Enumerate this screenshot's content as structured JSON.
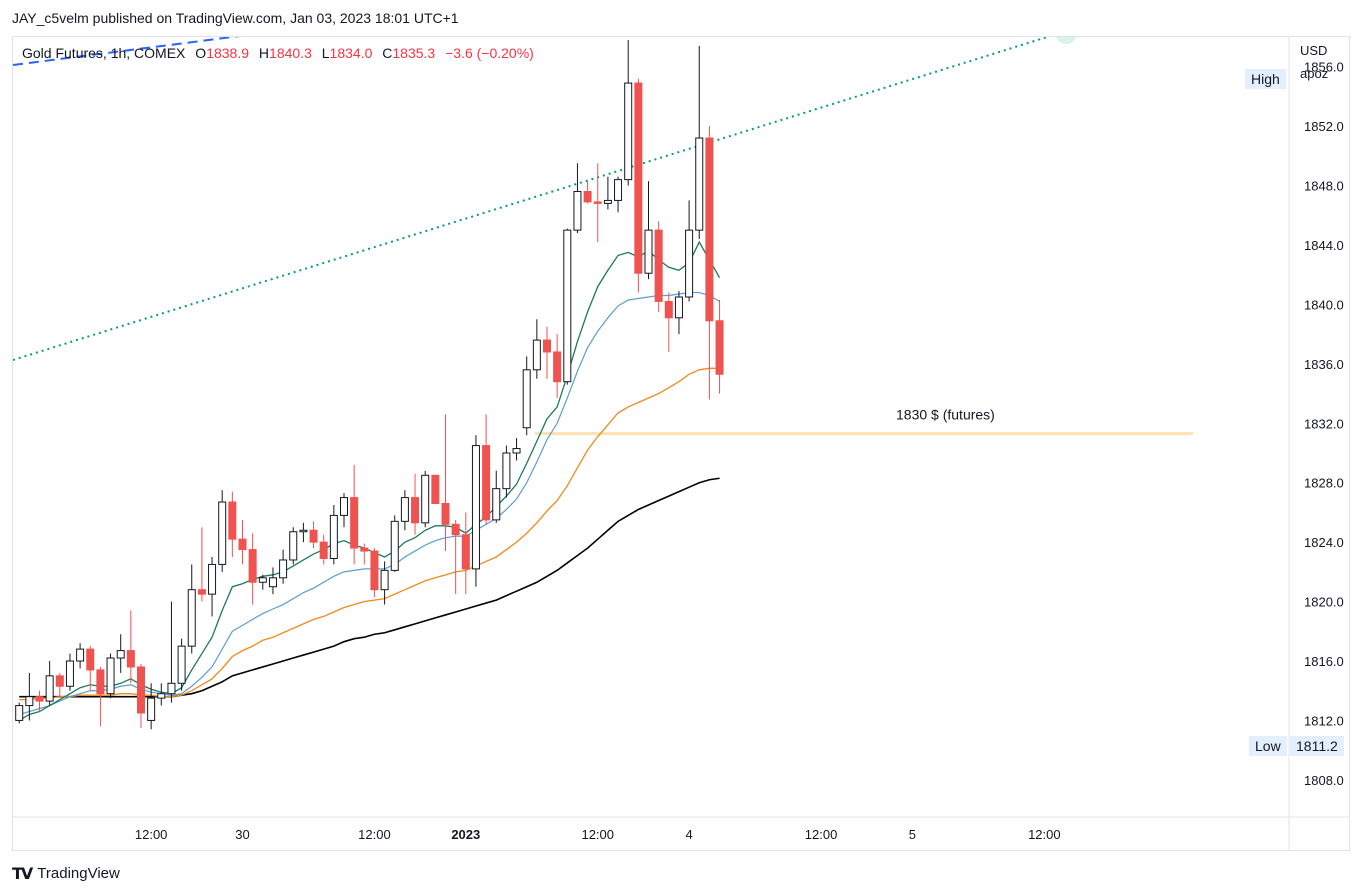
{
  "header": {
    "publish_text": "JAY_c5velm published on TradingView.com, Jan 03, 2023 18:01 UTC+1"
  },
  "legend": {
    "symbol": "Gold Futures, 1h, COMEX",
    "open_label": "O",
    "open": "1838.9",
    "high_label": "H",
    "high": "1840.3",
    "low_label": "L",
    "low": "1834.0",
    "close_label": "C",
    "close": "1835.3",
    "change": "−3.6 (−0.20%)"
  },
  "price_axis": {
    "currency": "USD",
    "user": "apoz",
    "high_tag": "High",
    "low_tag": "Low",
    "low_value": "1811.2"
  },
  "annotation": {
    "level_text": "1830 $ (futures)",
    "level_value": 1831.3
  },
  "brand": {
    "name": "TradingView"
  },
  "colors": {
    "up_body": "#ffffff",
    "up_border": "#131722",
    "down_body": "#ef5350",
    "down_border": "#ef5350",
    "ma_fast": "#1b7a5a",
    "ma_mid": "#5b9bd5",
    "ma_slow": "#ef8a1e",
    "ma_long": "#000000",
    "trendline": "#089981",
    "dashed_line": "#2962ff",
    "level_line": "#ffe0b2"
  },
  "chart_data": {
    "type": "candlestick",
    "title": "Gold Futures, 1h, COMEX",
    "y_ticks": [
      1808,
      1812,
      1816,
      1820,
      1824,
      1828,
      1832,
      1836,
      1840,
      1844,
      1848,
      1852,
      1856
    ],
    "y_tick_labels": [
      "1808.0",
      "1812.0",
      "1816.0",
      "1820.0",
      "1824.0",
      "1828.0",
      "1832.0",
      "1836.0",
      "1840.0",
      "1844.0",
      "1848.0",
      "1852.0",
      "1856.0"
    ],
    "ylim": [
      1805.5,
      1858
    ],
    "x_tick_labels": [
      {
        "i": 13,
        "label": "12:00",
        "bold": false
      },
      {
        "i": 22,
        "label": "30",
        "bold": false
      },
      {
        "i": 35,
        "label": "12:00",
        "bold": false
      },
      {
        "i": 44,
        "label": "2023",
        "bold": true
      },
      {
        "i": 57,
        "label": "12:00",
        "bold": false
      },
      {
        "i": 66,
        "label": "4",
        "bold": false
      },
      {
        "i": 79,
        "label": "12:00",
        "bold": false
      },
      {
        "i": 88,
        "label": "5",
        "bold": false
      },
      {
        "i": 101,
        "label": "12:00",
        "bold": false
      }
    ],
    "candles": [
      [
        1812.0,
        1813.2,
        1811.8,
        1813.0
      ],
      [
        1813.0,
        1815.2,
        1812.0,
        1813.6
      ],
      [
        1813.6,
        1814.0,
        1812.6,
        1813.3
      ],
      [
        1813.3,
        1816.0,
        1813.0,
        1815.0
      ],
      [
        1815.0,
        1815.2,
        1813.5,
        1814.3
      ],
      [
        1814.3,
        1816.5,
        1814.0,
        1816.0
      ],
      [
        1816.0,
        1817.2,
        1815.5,
        1816.8
      ],
      [
        1816.8,
        1817.0,
        1814.0,
        1815.4
      ],
      [
        1815.4,
        1815.6,
        1811.6,
        1813.8
      ],
      [
        1813.8,
        1816.5,
        1813.5,
        1816.2
      ],
      [
        1816.2,
        1817.8,
        1815.2,
        1816.7
      ],
      [
        1816.7,
        1819.4,
        1814.5,
        1815.6
      ],
      [
        1815.6,
        1815.8,
        1811.5,
        1812.5
      ],
      [
        1812.0,
        1814.5,
        1811.4,
        1813.5
      ],
      [
        1813.5,
        1814.5,
        1813.0,
        1813.8
      ],
      [
        1813.8,
        1820.0,
        1813.2,
        1814.5
      ],
      [
        1814.5,
        1817.5,
        1814.0,
        1817.0
      ],
      [
        1817.0,
        1822.5,
        1816.5,
        1820.8
      ],
      [
        1820.8,
        1825.0,
        1820.0,
        1820.5
      ],
      [
        1820.5,
        1823.0,
        1819.0,
        1822.5
      ],
      [
        1822.5,
        1827.5,
        1822.0,
        1826.7
      ],
      [
        1826.7,
        1827.4,
        1823.0,
        1824.2
      ],
      [
        1824.2,
        1825.5,
        1822.5,
        1823.5
      ],
      [
        1823.5,
        1824.6,
        1819.8,
        1821.3
      ],
      [
        1821.3,
        1821.8,
        1820.8,
        1821.6
      ],
      [
        1821.0,
        1822.3,
        1820.5,
        1821.6
      ],
      [
        1821.6,
        1823.5,
        1821.2,
        1822.8
      ],
      [
        1822.8,
        1825.0,
        1822.5,
        1824.7
      ],
      [
        1824.7,
        1825.3,
        1824.0,
        1824.8
      ],
      [
        1824.8,
        1825.4,
        1823.6,
        1824.0
      ],
      [
        1824.0,
        1824.5,
        1822.5,
        1822.9
      ],
      [
        1822.9,
        1826.5,
        1822.5,
        1825.8
      ],
      [
        1825.8,
        1827.3,
        1825.0,
        1827.0
      ],
      [
        1827.0,
        1829.2,
        1822.5,
        1823.6
      ],
      [
        1823.6,
        1823.9,
        1822.5,
        1823.4
      ],
      [
        1823.4,
        1823.6,
        1820.3,
        1820.8
      ],
      [
        1820.8,
        1822.7,
        1819.8,
        1822.1
      ],
      [
        1822.1,
        1825.8,
        1822.0,
        1825.4
      ],
      [
        1825.4,
        1827.5,
        1824.8,
        1827.0
      ],
      [
        1827.0,
        1828.6,
        1824.5,
        1825.3
      ],
      [
        1825.3,
        1828.8,
        1825.0,
        1828.5
      ],
      [
        1828.5,
        1828.5,
        1826.6,
        1826.6
      ],
      [
        1826.6,
        1832.6,
        1823.4,
        1825.2
      ],
      [
        1825.2,
        1825.5,
        1820.5,
        1824.5
      ],
      [
        1824.5,
        1826.0,
        1820.5,
        1822.2
      ],
      [
        1822.2,
        1831.2,
        1821.0,
        1830.5
      ],
      [
        1830.5,
        1832.6,
        1825.2,
        1825.5
      ],
      [
        1825.5,
        1828.8,
        1825.3,
        1827.6
      ],
      [
        1827.6,
        1830.5,
        1827.0,
        1830.0
      ],
      [
        1830.0,
        1831.0,
        1829.5,
        1830.3
      ],
      [
        1831.7,
        1836.5,
        1831.2,
        1835.6
      ],
      [
        1835.6,
        1839.0,
        1835.0,
        1837.6
      ],
      [
        1837.6,
        1838.5,
        1835.0,
        1836.8
      ],
      [
        1836.8,
        1838.0,
        1833.7,
        1834.8
      ],
      [
        1834.8,
        1845.1,
        1834.6,
        1845.0
      ],
      [
        1845.0,
        1849.5,
        1844.8,
        1847.6
      ],
      [
        1847.6,
        1848.3,
        1846.8,
        1846.9
      ],
      [
        1846.9,
        1849.5,
        1844.2,
        1846.8
      ],
      [
        1846.8,
        1848.6,
        1846.4,
        1847.0
      ],
      [
        1847.0,
        1848.6,
        1846.2,
        1848.4
      ],
      [
        1848.4,
        1857.8,
        1848.0,
        1854.9
      ],
      [
        1854.9,
        1855.2,
        1840.8,
        1842.1
      ],
      [
        1842.1,
        1848.3,
        1841.7,
        1845.0
      ],
      [
        1845.0,
        1845.6,
        1839.5,
        1840.2
      ],
      [
        1840.2,
        1840.8,
        1836.8,
        1839.1
      ],
      [
        1839.1,
        1840.9,
        1838.0,
        1840.5
      ],
      [
        1840.5,
        1847.0,
        1840.2,
        1845.0
      ],
      [
        1845.0,
        1857.4,
        1844.4,
        1851.2
      ],
      [
        1851.2,
        1852.0,
        1833.6,
        1838.9
      ],
      [
        1838.9,
        1840.3,
        1834.0,
        1835.3
      ]
    ],
    "ma_fast": [
      1812.0,
      1812.4,
      1812.6,
      1813.0,
      1813.4,
      1813.8,
      1814.2,
      1814.4,
      1814.3,
      1814.3,
      1814.5,
      1814.8,
      1814.4,
      1814.1,
      1813.9,
      1813.8,
      1814.2,
      1815.4,
      1816.5,
      1817.6,
      1819.4,
      1821.0,
      1821.2,
      1821.5,
      1821.7,
      1821.8,
      1822.0,
      1822.4,
      1822.8,
      1823.2,
      1823.5,
      1823.9,
      1824.1,
      1823.8,
      1823.6,
      1823.3,
      1823.0,
      1823.4,
      1824.0,
      1824.3,
      1824.8,
      1825.1,
      1825.1,
      1825.0,
      1824.6,
      1825.2,
      1825.7,
      1826.4,
      1827.1,
      1827.9,
      1829.3,
      1830.8,
      1832.3,
      1833.1,
      1835.2,
      1837.5,
      1839.5,
      1841.2,
      1842.3,
      1843.3,
      1843.5,
      1843.2,
      1843.6,
      1843.0,
      1842.5,
      1842.3,
      1842.8,
      1844.2,
      1843.0,
      1841.8
    ],
    "ma_mid": [
      1812.4,
      1812.6,
      1812.8,
      1813.0,
      1813.3,
      1813.6,
      1813.8,
      1814.0,
      1814.0,
      1814.1,
      1814.3,
      1814.4,
      1814.1,
      1813.9,
      1813.8,
      1813.7,
      1813.8,
      1814.3,
      1814.9,
      1815.6,
      1816.8,
      1818.0,
      1818.4,
      1818.8,
      1819.2,
      1819.5,
      1819.8,
      1820.2,
      1820.6,
      1820.9,
      1821.3,
      1821.7,
      1822.0,
      1822.1,
      1822.2,
      1822.2,
      1822.2,
      1822.5,
      1823.0,
      1823.4,
      1823.8,
      1824.1,
      1824.3,
      1824.4,
      1824.4,
      1824.8,
      1825.2,
      1825.6,
      1826.2,
      1826.9,
      1828.0,
      1829.4,
      1830.9,
      1832.0,
      1833.7,
      1835.5,
      1837.1,
      1838.2,
      1839.1,
      1839.9,
      1840.3,
      1840.4,
      1840.5,
      1840.6,
      1840.6,
      1840.7,
      1840.8,
      1840.8,
      1840.6,
      1840.2
    ],
    "ma_slow": [
      1813.4,
      1813.4,
      1813.5,
      1813.5,
      1813.6,
      1813.6,
      1813.7,
      1813.7,
      1813.7,
      1813.7,
      1813.8,
      1813.8,
      1813.7,
      1813.7,
      1813.6,
      1813.6,
      1813.7,
      1814.0,
      1814.4,
      1814.8,
      1815.5,
      1816.3,
      1816.7,
      1817.0,
      1817.4,
      1817.6,
      1817.9,
      1818.2,
      1818.5,
      1818.8,
      1819.0,
      1819.3,
      1819.6,
      1819.8,
      1820.0,
      1820.1,
      1820.2,
      1820.5,
      1820.8,
      1821.1,
      1821.4,
      1821.6,
      1821.8,
      1822.0,
      1822.1,
      1822.4,
      1822.7,
      1823.0,
      1823.5,
      1824.0,
      1824.6,
      1825.3,
      1826.1,
      1826.8,
      1827.8,
      1829.0,
      1830.2,
      1831.1,
      1831.9,
      1832.7,
      1833.1,
      1833.4,
      1833.7,
      1834.0,
      1834.4,
      1834.8,
      1835.3,
      1835.6,
      1835.7,
      1835.7
    ],
    "ma_long": [
      1813.6,
      1813.6,
      1813.6,
      1813.6,
      1813.6,
      1813.6,
      1813.6,
      1813.6,
      1813.6,
      1813.6,
      1813.6,
      1813.6,
      1813.6,
      1813.6,
      1813.6,
      1813.6,
      1813.7,
      1813.8,
      1814.0,
      1814.3,
      1814.6,
      1815.0,
      1815.2,
      1815.4,
      1815.6,
      1815.8,
      1816.0,
      1816.2,
      1816.4,
      1816.6,
      1816.8,
      1817.0,
      1817.3,
      1817.5,
      1817.6,
      1817.8,
      1817.9,
      1818.1,
      1818.3,
      1818.5,
      1818.7,
      1818.9,
      1819.1,
      1819.3,
      1819.5,
      1819.7,
      1819.9,
      1820.1,
      1820.4,
      1820.7,
      1821.0,
      1821.3,
      1821.7,
      1822.1,
      1822.6,
      1823.1,
      1823.6,
      1824.2,
      1824.8,
      1825.4,
      1825.8,
      1826.2,
      1826.5,
      1826.8,
      1827.1,
      1827.4,
      1827.7,
      1828.0,
      1828.2,
      1828.3
    ]
  }
}
